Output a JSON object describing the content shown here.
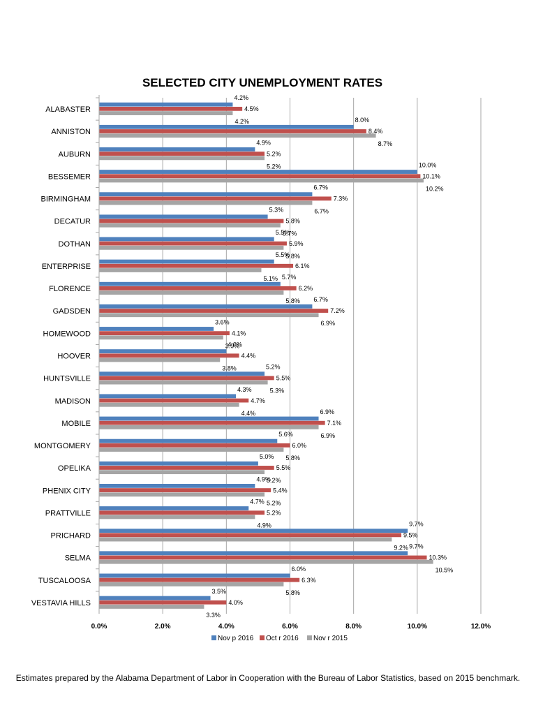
{
  "chart_data": {
    "type": "bar",
    "orientation": "horizontal",
    "title": "SELECTED CITY UNEMPLOYMENT RATES",
    "categories": [
      "ALABASTER",
      "ANNISTON",
      "AUBURN",
      "BESSEMER",
      "BIRMINGHAM",
      "DECATUR",
      "DOTHAN",
      "ENTERPRISE",
      "FLORENCE",
      "GADSDEN",
      "HOMEWOOD",
      "HOOVER",
      "HUNTSVILLE",
      "MADISON",
      "MOBILE",
      "MONTGOMERY",
      "OPELIKA",
      "PHENIX CITY",
      "PRATTVILLE",
      "PRICHARD",
      "SELMA",
      "TUSCALOOSA",
      "VESTAVIA HILLS"
    ],
    "series": [
      {
        "name": "Nov p 2016",
        "color": "#4F81BD",
        "values": [
          4.2,
          8.0,
          4.9,
          10.0,
          6.7,
          5.3,
          5.5,
          5.5,
          5.7,
          6.7,
          3.6,
          4.0,
          5.2,
          4.3,
          6.9,
          5.6,
          5.0,
          4.9,
          4.7,
          9.7,
          9.7,
          6.0,
          3.5
        ]
      },
      {
        "name": "Oct r 2016",
        "color": "#C0504D",
        "values": [
          4.5,
          8.4,
          5.2,
          10.1,
          7.3,
          5.8,
          5.9,
          6.1,
          6.2,
          7.2,
          4.1,
          4.4,
          5.5,
          4.7,
          7.1,
          6.0,
          5.5,
          5.4,
          5.2,
          9.5,
          10.3,
          6.3,
          4.0
        ]
      },
      {
        "name": "Nov r 2015",
        "color": "#A5A5A5",
        "values": [
          4.2,
          8.7,
          5.2,
          10.2,
          6.7,
          5.7,
          5.8,
          5.1,
          5.8,
          6.9,
          3.9,
          3.8,
          5.3,
          4.4,
          6.9,
          5.8,
          5.2,
          5.2,
          4.9,
          9.2,
          10.5,
          5.8,
          3.3
        ]
      }
    ],
    "value_labels": [
      [
        "4.2%",
        "8.0%",
        "4.9%",
        "10.0%",
        "6.7%",
        "5.3%",
        "5.5%",
        "5.5%",
        "5.7%",
        "6.7%",
        "3.6%",
        "4.0%",
        "5.2%",
        "4.3%",
        "6.9%",
        "5.6%",
        "5.0%",
        "4.9%",
        "4.7%",
        "9.7%",
        "9.7%",
        "6.0%",
        "3.5%"
      ],
      [
        "4.5%",
        "8.4%",
        "5.2%",
        "10.1%",
        "7.3%",
        "5.8%",
        "5.9%",
        "6.1%",
        "6.2%",
        "7.2%",
        "4.1%",
        "4.4%",
        "5.5%",
        "4.7%",
        "7.1%",
        "6.0%",
        "5.5%",
        "5.4%",
        "5.2%",
        "9.5%",
        "10.3%",
        "6.3%",
        "4.0%"
      ],
      [
        "4.2%",
        "8.7%",
        "5.2%",
        "10.2%",
        "6.7%",
        "5.7%",
        "5.8%",
        "5.1%",
        "5.8%",
        "6.9%",
        "3.9%",
        "3.8%",
        "5.3%",
        "4.4%",
        "6.9%",
        "5.8%",
        "5.2%",
        "5.2%",
        "4.9%",
        "9.2%",
        "10.5%",
        "5.8%",
        "3.3%"
      ]
    ],
    "xlim": [
      0,
      12
    ],
    "x_ticks": [
      0,
      2,
      4,
      6,
      8,
      10,
      12
    ],
    "x_tick_labels": [
      "0.0%",
      "2.0%",
      "4.0%",
      "6.0%",
      "8.0%",
      "10.0%",
      "12.0%"
    ],
    "grid": true,
    "legend_position": "bottom"
  },
  "footnote": "Estimates prepared by the Alabama Department of Labor in Cooperation with the Bureau of Labor Statistics, based on 2015 benchmark."
}
